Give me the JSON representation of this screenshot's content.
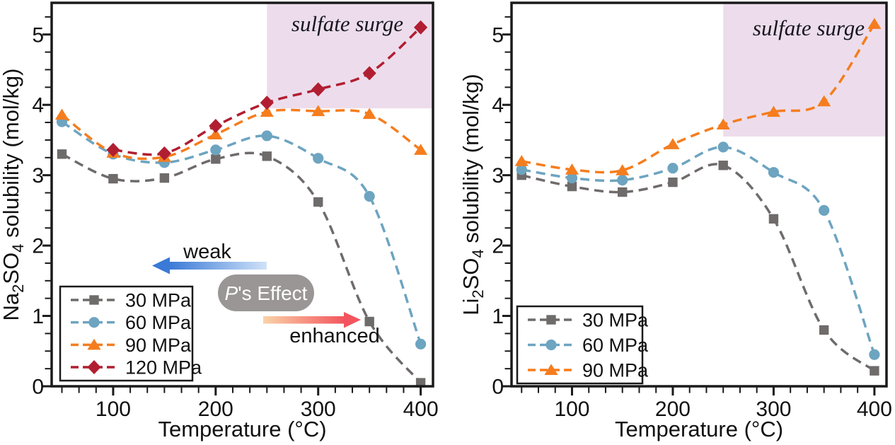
{
  "chart_data": [
    {
      "type": "line",
      "id": "na2so4",
      "title": "",
      "xlabel": "Temperature (°C)",
      "ylabel": "Na2SO4 solubility (mol/kg)",
      "ylabel_parts": [
        [
          "Na",
          false
        ],
        [
          "2",
          true
        ],
        [
          "SO",
          false
        ],
        [
          "4",
          true
        ],
        [
          " solubility (mol/kg)",
          false
        ]
      ],
      "xlim": [
        40,
        412
      ],
      "ylim": [
        0,
        5.45
      ],
      "x_major_ticks": [
        100,
        200,
        300,
        400
      ],
      "y_major_ticks": [
        0,
        1,
        2,
        3,
        4,
        5
      ],
      "x_minor_step": 16.667,
      "y_minor_step": 0.25,
      "grid": false,
      "legend_position": "lower-left",
      "x": [
        50,
        100,
        150,
        200,
        250,
        300,
        350,
        400
      ],
      "series": [
        {
          "name": "30 MPa",
          "marker": "square",
          "color": "#6f6b6b",
          "values": [
            3.3,
            2.95,
            2.96,
            3.23,
            3.27,
            2.62,
            0.92,
            0.05
          ]
        },
        {
          "name": "60 MPa",
          "marker": "circle",
          "color": "#6da4c0",
          "values": [
            3.76,
            3.3,
            3.18,
            3.36,
            3.56,
            3.24,
            2.7,
            0.6
          ]
        },
        {
          "name": "90 MPa",
          "marker": "triangle",
          "color": "#f57d1e",
          "values": [
            3.86,
            3.32,
            3.26,
            3.58,
            3.9,
            3.91,
            3.87,
            3.36
          ]
        },
        {
          "name": "120 MPa",
          "marker": "diamond",
          "color": "#b11e31",
          "x": [
            100,
            150,
            200,
            250,
            300,
            350,
            400
          ],
          "values": [
            3.36,
            3.31,
            3.7,
            4.03,
            4.22,
            4.45,
            5.1
          ]
        }
      ],
      "shaded_region": {
        "label": "sulfate surge",
        "color": "#edddec",
        "label_color": "#16161f",
        "x0": 250,
        "x1": 412,
        "y0": 3.95,
        "y1": 5.45
      }
    },
    {
      "type": "line",
      "id": "li2so4",
      "title": "",
      "xlabel": "Temperature (°C)",
      "ylabel": "Li2SO4 solubility (mol/kg)",
      "ylabel_parts": [
        [
          "Li",
          false
        ],
        [
          "2",
          true
        ],
        [
          "SO",
          false
        ],
        [
          "4",
          true
        ],
        [
          " solubility (mol/kg)",
          false
        ]
      ],
      "xlim": [
        40,
        412
      ],
      "ylim": [
        0,
        5.45
      ],
      "x_major_ticks": [
        100,
        200,
        300,
        400
      ],
      "y_major_ticks": [
        0,
        1,
        2,
        3,
        4,
        5
      ],
      "x_minor_step": 16.667,
      "y_minor_step": 0.25,
      "grid": false,
      "legend_position": "lower-left",
      "x": [
        50,
        100,
        150,
        200,
        250,
        300,
        350,
        400
      ],
      "series": [
        {
          "name": "30 MPa",
          "marker": "square",
          "color": "#6f6b6b",
          "values": [
            3.0,
            2.84,
            2.76,
            2.9,
            3.14,
            2.38,
            0.8,
            0.22
          ]
        },
        {
          "name": "60 MPa",
          "marker": "circle",
          "color": "#6da4c0",
          "values": [
            3.08,
            2.96,
            2.93,
            3.1,
            3.4,
            3.04,
            2.5,
            0.45
          ]
        },
        {
          "name": "90 MPa",
          "marker": "triangle",
          "color": "#f57d1e",
          "values": [
            3.2,
            3.08,
            3.07,
            3.44,
            3.72,
            3.9,
            4.05,
            5.15
          ]
        }
      ],
      "shaded_region": {
        "label": "sulfate surge",
        "color": "#edddec",
        "label_color": "#16161f",
        "x0": 250,
        "x1": 412,
        "y0": 3.55,
        "y1": 5.45
      }
    }
  ],
  "annotations": {
    "weak_label": "weak",
    "weak_arrow_colors": [
      "#3a79d6",
      "#cfe2f8"
    ],
    "pill_text": "P's Effect",
    "pill_text_parts": [
      [
        "P",
        true
      ],
      [
        "'s Effect",
        false
      ]
    ],
    "pill_color": "#9a9695",
    "pill_text_color": "#ffffff",
    "enhanced_label": "enhanced",
    "enhanced_arrow_colors": [
      "#f9d3a8",
      "#f3555e"
    ]
  },
  "colors": {
    "frame": "#1a1a1a",
    "text": "#111111",
    "legend_border": "#1a1a1a",
    "legend_bg": "#ffffff"
  }
}
